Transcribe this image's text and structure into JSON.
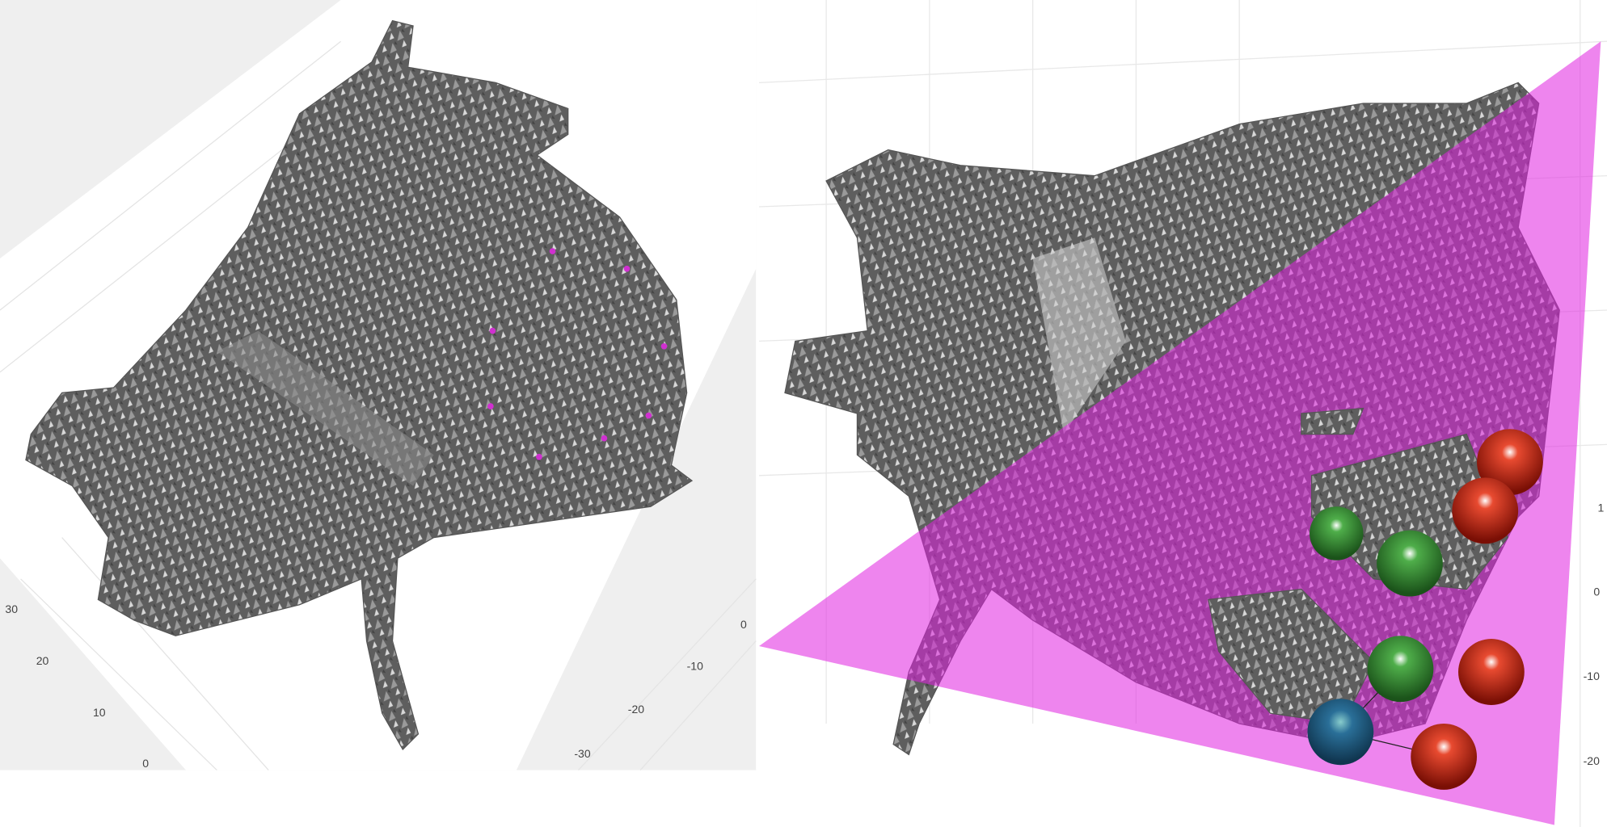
{
  "panels": [
    {
      "axis_ticks_left": [
        "30",
        "20",
        "10",
        "0"
      ],
      "axis_ticks_right": [
        "0",
        "-10",
        "-20",
        "-30"
      ]
    },
    {
      "axis_ticks": [
        "1",
        "0",
        "-10",
        "-20"
      ]
    }
  ]
}
